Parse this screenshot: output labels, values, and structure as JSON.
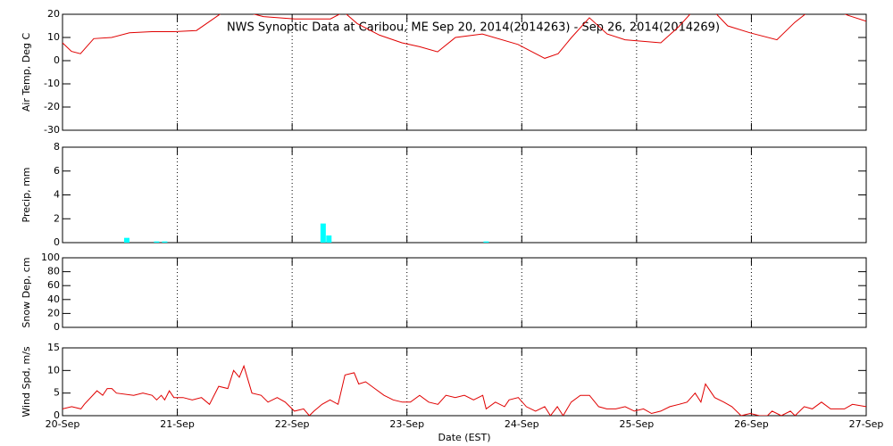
{
  "chart_data": [
    {
      "type": "line",
      "title": "NWS Synoptic Data at Caribou, ME   Sep 20, 2014(2014263) - Sep 26, 2014(2014269)",
      "ylabel": "Air Temp, Deg C",
      "color": "#e00000",
      "grid": true,
      "xlim": [
        0,
        7
      ],
      "xticks": [
        0,
        1,
        2,
        3,
        4,
        5,
        6,
        7
      ],
      "ylim": [
        -30,
        20
      ],
      "yticks": [
        -30,
        -20,
        -10,
        0,
        10,
        20
      ],
      "x": [
        0,
        0.078,
        0.156,
        0.272,
        0.428,
        0.583,
        0.778,
        0.972,
        1.167,
        1.283,
        1.4,
        1.594,
        1.75,
        2.022,
        2.333,
        2.45,
        2.567,
        2.761,
        2.956,
        3.111,
        3.267,
        3.422,
        3.656,
        3.967,
        4.2,
        4.317,
        4.433,
        4.589,
        4.744,
        4.9,
        5.211,
        5.367,
        5.483,
        5.678,
        5.794,
        5.989,
        6.222,
        6.378,
        6.494,
        6.767,
        6.844,
        7
      ],
      "values": [
        7.7,
        4,
        3,
        9.5,
        10,
        12,
        12.5,
        12.5,
        13,
        17,
        21,
        21,
        19,
        18,
        18,
        21,
        16,
        11,
        7.7,
        6,
        3.8,
        10,
        11.5,
        7,
        1,
        3,
        10,
        18.5,
        11.5,
        9,
        7.7,
        14.6,
        21,
        21,
        15,
        12,
        9,
        16.5,
        21,
        21,
        19.5,
        17
      ]
    },
    {
      "type": "bar",
      "ylabel": "Precip, mm",
      "color": "#00ffff",
      "grid": true,
      "xlim": [
        0,
        7
      ],
      "xticks": [
        0,
        1,
        2,
        3,
        4,
        5,
        6,
        7
      ],
      "ylim": [
        0,
        8
      ],
      "yticks": [
        0,
        2,
        4,
        6,
        8
      ],
      "x": [
        0.56,
        0.82,
        0.89,
        2.27,
        2.32,
        3.69
      ],
      "values": [
        0.4,
        0.1,
        0.1,
        1.6,
        0.6,
        0.1
      ]
    },
    {
      "type": "line",
      "ylabel": "Snow Dep, cm",
      "grid": true,
      "xlim": [
        0,
        7
      ],
      "xticks": [
        0,
        1,
        2,
        3,
        4,
        5,
        6,
        7
      ],
      "ylim": [
        0,
        100
      ],
      "yticks": [
        0,
        20,
        40,
        60,
        80,
        100
      ]
    },
    {
      "type": "line",
      "ylabel": "Wind Spd, m/s",
      "xlabel": "Date (EST)",
      "color": "#e00000",
      "grid": true,
      "xlim": [
        0,
        7
      ],
      "xticks": [
        {
          "value": 0,
          "label": "20-Sep"
        },
        {
          "value": 1,
          "label": "21-Sep"
        },
        {
          "value": 2,
          "label": "22-Sep"
        },
        {
          "value": 3,
          "label": "23-Sep"
        },
        {
          "value": 4,
          "label": "24-Sep"
        },
        {
          "value": 5,
          "label": "25-Sep"
        },
        {
          "value": 6,
          "label": "26-Sep"
        },
        {
          "value": 7,
          "label": "27-Sep"
        }
      ],
      "ylim": [
        0,
        15
      ],
      "yticks": [
        0,
        5,
        10,
        15
      ],
      "x": [
        0,
        0.08,
        0.16,
        0.19,
        0.3,
        0.35,
        0.39,
        0.43,
        0.47,
        0.62,
        0.7,
        0.78,
        0.82,
        0.86,
        0.89,
        0.93,
        0.97,
        1.05,
        1.13,
        1.21,
        1.28,
        1.36,
        1.44,
        1.49,
        1.54,
        1.58,
        1.65,
        1.73,
        1.79,
        1.87,
        1.94,
        2.02,
        2.1,
        2.15,
        2.19,
        2.26,
        2.33,
        2.4,
        2.46,
        2.54,
        2.58,
        2.64,
        2.72,
        2.8,
        2.88,
        2.96,
        3.03,
        3.11,
        3.19,
        3.27,
        3.34,
        3.42,
        3.5,
        3.58,
        3.66,
        3.69,
        3.77,
        3.85,
        3.89,
        3.97,
        4.04,
        4.12,
        4.2,
        4.25,
        4.31,
        4.36,
        4.43,
        4.51,
        4.59,
        4.67,
        4.74,
        4.82,
        4.9,
        4.98,
        5.06,
        5.13,
        5.21,
        5.29,
        5.37,
        5.44,
        5.51,
        5.56,
        5.6,
        5.68,
        5.76,
        5.83,
        5.91,
        5.99,
        6.07,
        6.14,
        6.18,
        6.26,
        6.34,
        6.38,
        6.46,
        6.53,
        6.61,
        6.69,
        6.81,
        6.88,
        7
      ],
      "values": [
        1.5,
        2,
        1.5,
        2.5,
        5.5,
        4.5,
        6,
        6,
        5,
        4.5,
        5,
        4.5,
        3.5,
        4.5,
        3.5,
        5.5,
        4,
        4,
        3.5,
        4,
        2.5,
        6.5,
        6,
        10,
        8.5,
        11,
        5,
        4.5,
        3,
        4,
        3,
        1,
        1.5,
        0,
        1,
        2.5,
        3.5,
        2.5,
        9,
        9.5,
        7,
        7.5,
        6,
        4.5,
        3.5,
        3,
        3,
        4.5,
        3,
        2.5,
        4.5,
        4,
        4.5,
        3.5,
        4.5,
        1.5,
        3,
        2,
        3.5,
        4,
        2,
        1,
        2,
        0,
        2,
        0,
        3,
        4.5,
        4.5,
        2,
        1.5,
        1.5,
        2,
        1,
        1.5,
        0.5,
        1,
        2,
        2.5,
        3,
        5,
        3,
        7,
        4,
        3,
        2,
        0,
        0.5,
        0,
        0,
        1,
        0,
        1,
        0,
        2,
        1.5,
        3,
        1.5,
        1.5,
        2.5,
        2
      ]
    }
  ]
}
